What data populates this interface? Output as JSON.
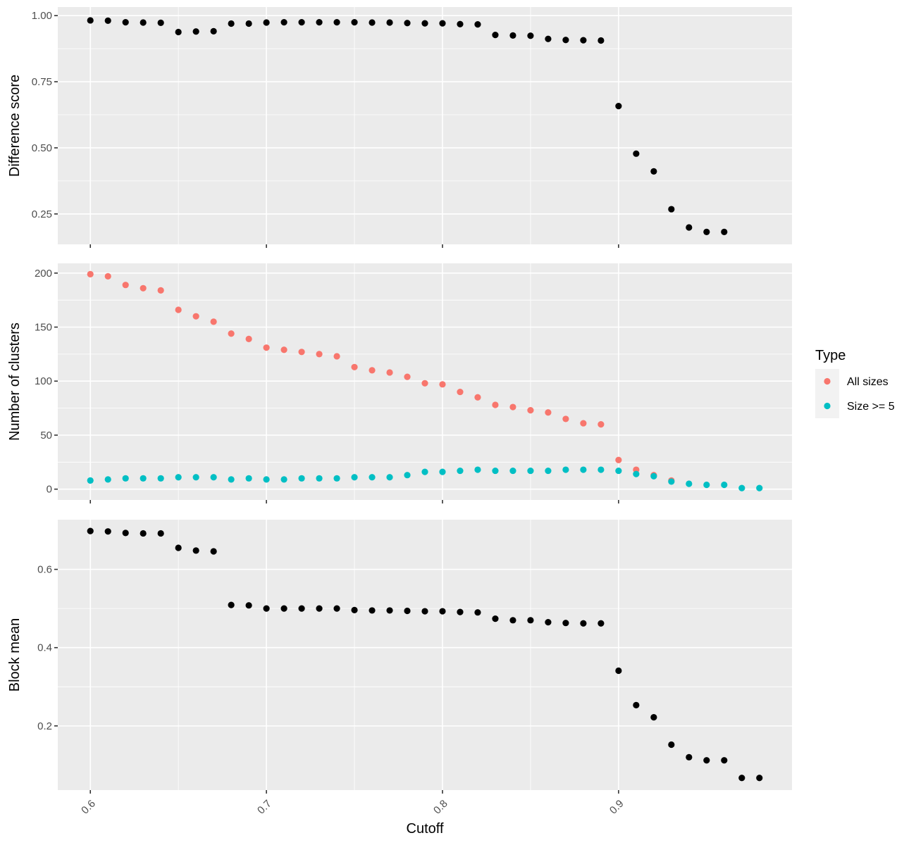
{
  "chart_data": {
    "type": "scatter",
    "xlabel": "Cutoff",
    "x_ticks": [
      0.6,
      0.7,
      0.8,
      0.9
    ],
    "x_tick_labels": [
      "0.6",
      "0.7",
      "0.8",
      "0.9"
    ],
    "xlim": [
      0.5815,
      0.9985
    ],
    "legend": {
      "title": "Type",
      "placement": "right",
      "entries": [
        {
          "label": "All sizes",
          "color": "#F8766D"
        },
        {
          "label": "Size >= 5",
          "color": "#00BFC4"
        }
      ]
    },
    "panels": [
      {
        "ylabel": "Difference score",
        "ylim": [
          0.135,
          1.0325
        ],
        "y_ticks": [
          0.25,
          0.5,
          0.75,
          1.0
        ],
        "y_tick_labels": [
          "0.25",
          "0.50",
          "0.75",
          "1.00"
        ],
        "grid": true,
        "series": [
          {
            "color": "#000000",
            "x": [
              0.6,
              0.61,
              0.62,
              0.63,
              0.64,
              0.65,
              0.66,
              0.67,
              0.68,
              0.69,
              0.7,
              0.71,
              0.72,
              0.73,
              0.74,
              0.75,
              0.76,
              0.77,
              0.78,
              0.79,
              0.8,
              0.81,
              0.82,
              0.83,
              0.84,
              0.85,
              0.86,
              0.87,
              0.88,
              0.89,
              0.9,
              0.91,
              0.92,
              0.93,
              0.94,
              0.95,
              0.96
            ],
            "y": [
              0.982,
              0.981,
              0.975,
              0.974,
              0.973,
              0.938,
              0.94,
              0.941,
              0.97,
              0.97,
              0.974,
              0.975,
              0.975,
              0.975,
              0.975,
              0.975,
              0.974,
              0.974,
              0.972,
              0.971,
              0.971,
              0.968,
              0.967,
              0.927,
              0.925,
              0.924,
              0.912,
              0.908,
              0.907,
              0.906,
              0.658,
              0.478,
              0.411,
              0.268,
              0.199,
              0.182,
              0.182
            ]
          }
        ]
      },
      {
        "ylabel": "Number of clusters",
        "ylim": [
          -10,
          209
        ],
        "y_ticks": [
          0,
          50,
          100,
          150,
          200
        ],
        "y_tick_labels": [
          "0",
          "50",
          "100",
          "150",
          "200"
        ],
        "grid": true,
        "series": [
          {
            "name": "All sizes",
            "color": "#F8766D",
            "x": [
              0.6,
              0.61,
              0.62,
              0.63,
              0.64,
              0.65,
              0.66,
              0.67,
              0.68,
              0.69,
              0.7,
              0.71,
              0.72,
              0.73,
              0.74,
              0.75,
              0.76,
              0.77,
              0.78,
              0.79,
              0.8,
              0.81,
              0.82,
              0.83,
              0.84,
              0.85,
              0.86,
              0.87,
              0.88,
              0.89,
              0.9,
              0.91,
              0.92,
              0.93
            ],
            "y": [
              199,
              197,
              189,
              186,
              184,
              166,
              160,
              155,
              144,
              139,
              131,
              129,
              127,
              125,
              123,
              113,
              110,
              108,
              104,
              98,
              97,
              90,
              85,
              78,
              76,
              73,
              71,
              65,
              61,
              60,
              27,
              18,
              13,
              8
            ]
          },
          {
            "name": "Size >= 5",
            "color": "#00BFC4",
            "x": [
              0.6,
              0.61,
              0.62,
              0.63,
              0.64,
              0.65,
              0.66,
              0.67,
              0.68,
              0.69,
              0.7,
              0.71,
              0.72,
              0.73,
              0.74,
              0.75,
              0.76,
              0.77,
              0.78,
              0.79,
              0.8,
              0.81,
              0.82,
              0.83,
              0.84,
              0.85,
              0.86,
              0.87,
              0.88,
              0.89,
              0.9,
              0.91,
              0.92,
              0.93,
              0.94,
              0.95,
              0.96,
              0.97,
              0.98
            ],
            "y": [
              8,
              9,
              10,
              10,
              10,
              11,
              11,
              11,
              9,
              10,
              9,
              9,
              10,
              10,
              10,
              11,
              11,
              11,
              13,
              16,
              16,
              17,
              18,
              17,
              17,
              17,
              17,
              18,
              18,
              18,
              17,
              14,
              12,
              7,
              5,
              4,
              4,
              1,
              1
            ]
          }
        ]
      },
      {
        "ylabel": "Block mean",
        "ylim": [
          0.036,
          0.727
        ],
        "y_ticks": [
          0.2,
          0.4,
          0.6
        ],
        "y_tick_labels": [
          "0.2",
          "0.4",
          "0.6"
        ],
        "grid": true,
        "series": [
          {
            "color": "#000000",
            "x": [
              0.6,
              0.61,
              0.62,
              0.63,
              0.64,
              0.65,
              0.66,
              0.67,
              0.68,
              0.69,
              0.7,
              0.71,
              0.72,
              0.73,
              0.74,
              0.75,
              0.76,
              0.77,
              0.78,
              0.79,
              0.8,
              0.81,
              0.82,
              0.83,
              0.84,
              0.85,
              0.86,
              0.87,
              0.88,
              0.89,
              0.9,
              0.91,
              0.92,
              0.93,
              0.94,
              0.95,
              0.96,
              0.97,
              0.98
            ],
            "y": [
              0.698,
              0.697,
              0.693,
              0.692,
              0.692,
              0.655,
              0.648,
              0.646,
              0.509,
              0.508,
              0.5,
              0.5,
              0.5,
              0.5,
              0.5,
              0.496,
              0.495,
              0.495,
              0.494,
              0.493,
              0.493,
              0.491,
              0.49,
              0.474,
              0.47,
              0.47,
              0.465,
              0.463,
              0.462,
              0.462,
              0.341,
              0.253,
              0.222,
              0.152,
              0.12,
              0.112,
              0.112,
              0.067,
              0.067
            ]
          }
        ]
      }
    ]
  }
}
